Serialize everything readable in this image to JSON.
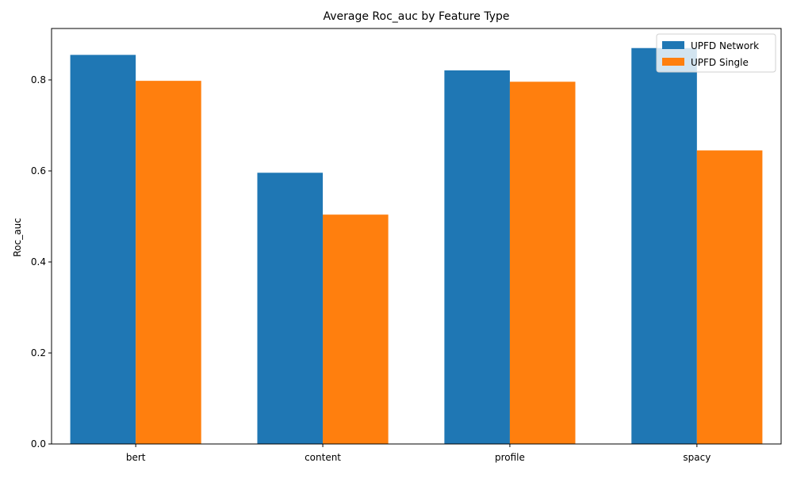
{
  "chart_data": {
    "type": "bar",
    "title": "Average Roc_auc by Feature Type",
    "xlabel": "",
    "ylabel": "Roc_auc",
    "categories": [
      "bert",
      "content",
      "profile",
      "spacy"
    ],
    "series": [
      {
        "name": "UPFD Network",
        "color": "#1f77b4",
        "values": [
          0.855,
          0.596,
          0.821,
          0.87
        ]
      },
      {
        "name": "UPFD Single",
        "color": "#ff7f0e",
        "values": [
          0.798,
          0.504,
          0.796,
          0.645
        ]
      }
    ],
    "ylim": [
      0,
      0.913
    ],
    "yticks": [
      0.0,
      0.2,
      0.4,
      0.6,
      0.8
    ],
    "ytick_labels": [
      "0.0",
      "0.2",
      "0.4",
      "0.6",
      "0.8"
    ],
    "grid": false,
    "legend": "top-right"
  }
}
